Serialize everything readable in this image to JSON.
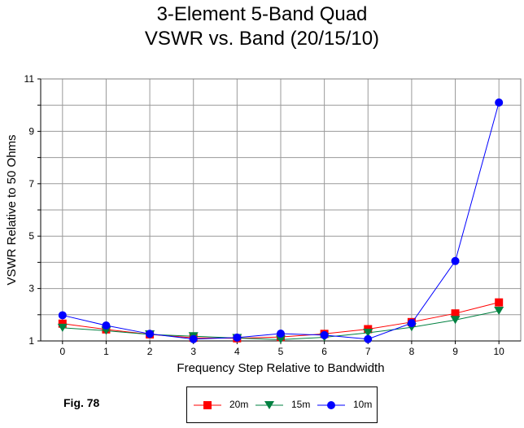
{
  "chart_data": {
    "type": "line",
    "title": "3-Element 5-Band Quad",
    "subtitle": "VSWR vs. Band (20/15/10)",
    "xlabel": "Frequency Step Relative to Bandwidth",
    "ylabel": "VSWR Relative to 50 Ohms",
    "x": [
      0,
      1,
      2,
      3,
      4,
      5,
      6,
      7,
      8,
      9,
      10
    ],
    "x_ticks": [
      "0",
      "1",
      "2",
      "3",
      "4",
      "5",
      "6",
      "7",
      "8",
      "9",
      "10"
    ],
    "y_ticks": [
      "1",
      "3",
      "5",
      "7",
      "9",
      "11"
    ],
    "xlim": [
      -0.5,
      10.5
    ],
    "ylim": [
      1,
      11
    ],
    "grid": true,
    "legend_position": "bottom-center",
    "series": [
      {
        "name": "20m",
        "color": "#ff0000",
        "marker": "square",
        "values": [
          1.66,
          1.44,
          1.25,
          1.12,
          1.1,
          1.15,
          1.27,
          1.45,
          1.72,
          2.05,
          2.47
        ]
      },
      {
        "name": "15m",
        "color": "#008040",
        "marker": "triangle-down",
        "values": [
          1.5,
          1.39,
          1.25,
          1.18,
          1.11,
          1.05,
          1.14,
          1.31,
          1.52,
          1.8,
          2.15
        ]
      },
      {
        "name": "10m",
        "color": "#0000ff",
        "marker": "circle",
        "values": [
          1.98,
          1.59,
          1.27,
          1.07,
          1.13,
          1.28,
          1.22,
          1.07,
          1.68,
          4.05,
          10.1
        ]
      }
    ]
  },
  "figure": {
    "label": "Fig. 78"
  }
}
